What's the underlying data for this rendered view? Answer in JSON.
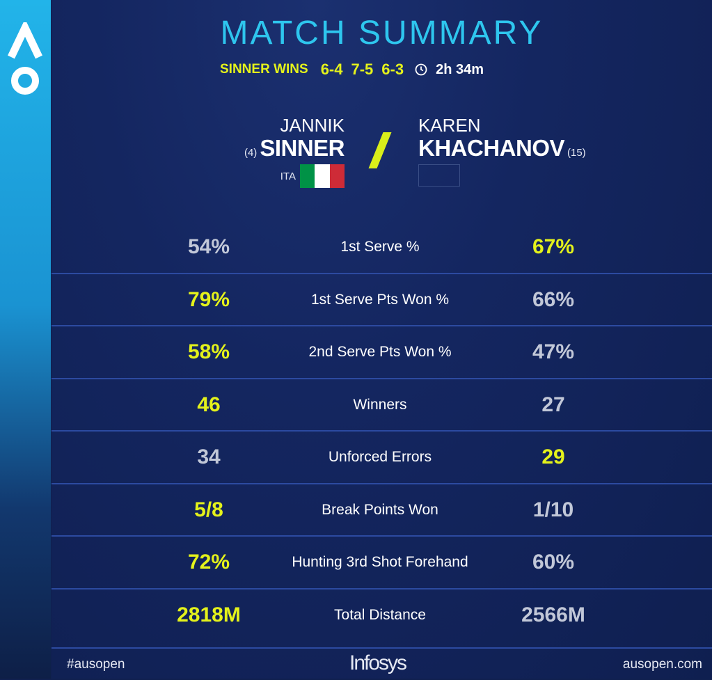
{
  "header": {
    "title": "MATCH SUMMARY",
    "result_label": "SINNER WINS",
    "sets": [
      "6-4",
      "7-5",
      "6-3"
    ],
    "duration": "2h 34m",
    "icon": "clock-icon"
  },
  "players": {
    "left": {
      "first": "JANNIK",
      "last": "SINNER",
      "seed": "(4)",
      "country": "ITA",
      "flag_colors": [
        "#009246",
        "#ffffff",
        "#ce2b37"
      ]
    },
    "right": {
      "first": "KAREN",
      "last": "KHACHANOV",
      "seed": "(15)"
    }
  },
  "stats": [
    {
      "label": "1st Serve %",
      "left": "54%",
      "right": "67%",
      "highlight": "right"
    },
    {
      "label": "1st Serve Pts Won %",
      "left": "79%",
      "right": "66%",
      "highlight": "left"
    },
    {
      "label": "2nd Serve Pts Won %",
      "left": "58%",
      "right": "47%",
      "highlight": "left"
    },
    {
      "label": "Winners",
      "left": "46",
      "right": "27",
      "highlight": "left"
    },
    {
      "label": "Unforced Errors",
      "left": "34",
      "right": "29",
      "highlight": "right"
    },
    {
      "label": "Break Points Won",
      "left": "5/8",
      "right": "1/10",
      "highlight": "left"
    },
    {
      "label": "Hunting 3rd Shot Forehand",
      "left": "72%",
      "right": "60%",
      "highlight": "left"
    },
    {
      "label": "Total Distance",
      "left": "2818M",
      "right": "2566M",
      "highlight": "left"
    }
  ],
  "footer": {
    "hashtag": "#ausopen",
    "sponsor": "Infosys",
    "site": "ausopen.com"
  },
  "colors": {
    "accent_yellow": "#e4f21b",
    "title_cyan": "#2ec6ee",
    "background": "#10204f",
    "divider": "#2c4aa0"
  }
}
